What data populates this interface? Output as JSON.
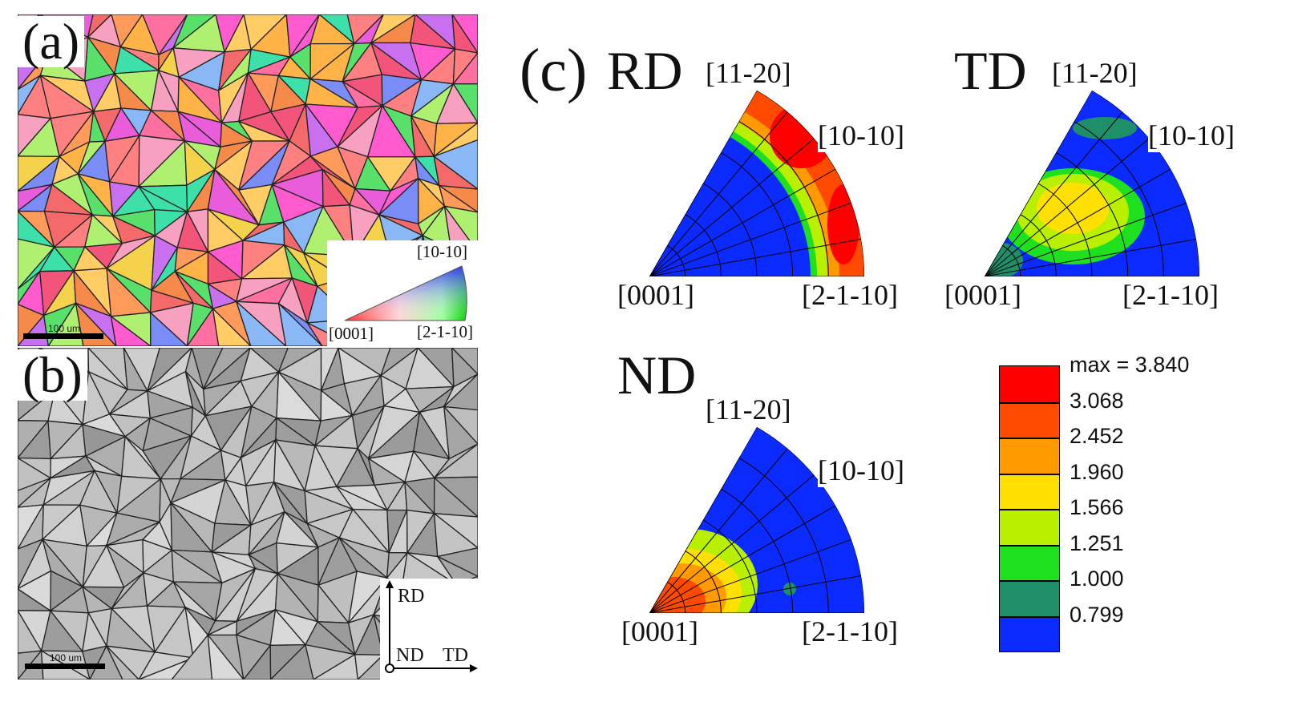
{
  "panel_a": {
    "label": "(a)",
    "scale_bar_text": "100 um",
    "ipf_key": {
      "top": "[10-10]",
      "bottom_left": "[0001]",
      "bottom_right": "[2-1-10]"
    }
  },
  "panel_b": {
    "label": "(b)",
    "scale_bar_text": "100 um",
    "axes": {
      "up": "RD",
      "origin": "ND",
      "right": "TD"
    }
  },
  "panel_c": {
    "label": "(c)",
    "figures": [
      {
        "direction": "RD",
        "top": "[11-20]",
        "right": "[10-10]",
        "bottom_left": "[0001]",
        "bottom_right": "[2-1-10]"
      },
      {
        "direction": "TD",
        "top": "[11-20]",
        "right": "[10-10]",
        "bottom_left": "[0001]",
        "bottom_right": "[2-1-10]"
      },
      {
        "direction": "ND",
        "top": "[11-20]",
        "right": "[10-10]",
        "bottom_left": "[0001]",
        "bottom_right": "[2-1-10]"
      }
    ],
    "legend": {
      "max_label": "max = 3.840",
      "levels": [
        "3.068",
        "2.452",
        "1.960",
        "1.566",
        "1.251",
        "1.000",
        "0.799"
      ],
      "colors": [
        "#ff0000",
        "#ff4a00",
        "#ff9a00",
        "#ffe000",
        "#b8f000",
        "#1fe01f",
        "#1f8f6a",
        "#0a2aff"
      ]
    }
  }
}
